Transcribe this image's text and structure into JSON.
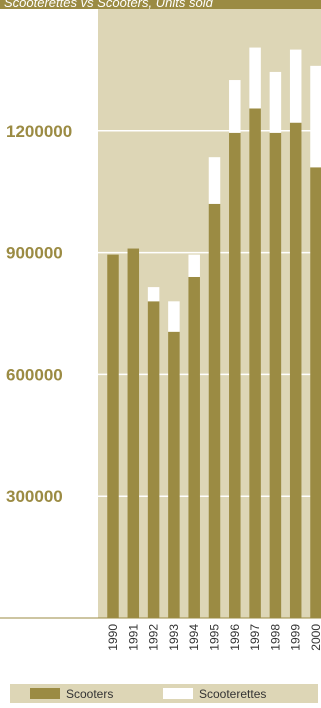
{
  "chart_data": {
    "type": "bar",
    "stacked": true,
    "title": "Scooterettes vs Scooters, Units sold",
    "xlabel": "",
    "ylabel": "",
    "categories": [
      "1990",
      "1991",
      "1992",
      "1993",
      "1994",
      "1995",
      "1996",
      "1997",
      "1998",
      "1999",
      "2000"
    ],
    "series": [
      {
        "name": "Scooters",
        "color": "#9b8b43",
        "values": [
          895000,
          910000,
          780000,
          705000,
          840000,
          1020000,
          1195000,
          1255000,
          1195000,
          1220000,
          1110000
        ]
      },
      {
        "name": "Scooterettes",
        "color": "#ffffff",
        "values": [
          0,
          0,
          35000,
          75000,
          55000,
          115000,
          130000,
          150000,
          150000,
          180000,
          250000
        ]
      }
    ],
    "ylim": [
      0,
      1500000
    ],
    "yticks": [
      300000,
      600000,
      900000,
      1200000
    ],
    "ytick_labels": [
      "300000",
      "600000",
      "900000",
      "1200000"
    ],
    "grid": true,
    "legend_position": "bottom",
    "colors": {
      "plot_background": "#ddd6b6",
      "title_background": "#9b8b43",
      "tick_label": "#9b8b43",
      "gridline": "#ffffff"
    }
  }
}
